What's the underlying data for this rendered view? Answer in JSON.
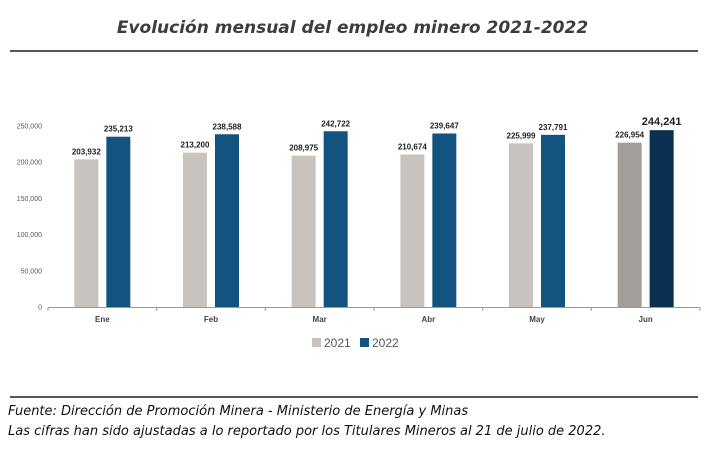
{
  "title": "Evolución mensual del empleo minero 2021-2022",
  "footer": {
    "source": "Fuente: Dirección de Promoción Minera - Ministerio de Energía y Minas",
    "note": "Las cifras han sido ajustadas a lo reportado por los Titulares Mineros al 21 de julio de 2022."
  },
  "chart_data": {
    "type": "bar",
    "title": "Evolución mensual del empleo minero 2021-2022",
    "categories": [
      "Ene",
      "Feb",
      "Mar",
      "Abr",
      "May",
      "Jun"
    ],
    "series": [
      {
        "name": "2021",
        "values": [
          203932,
          213200,
          208975,
          210674,
          225999,
          226954
        ],
        "labels": [
          "203,932",
          "213,200",
          "208,975",
          "210,674",
          "225,999",
          "226,954"
        ],
        "color": "#c8c3be",
        "last_color": "#a39e99"
      },
      {
        "name": "2022",
        "values": [
          235213,
          238588,
          242722,
          239647,
          237791,
          244241
        ],
        "labels": [
          "235,213",
          "238,588",
          "242,722",
          "239,647",
          "237,791",
          "244,241"
        ],
        "color": "#12547f",
        "last_color": "#0b3150"
      }
    ],
    "y_ticks": [
      "0",
      "50,000",
      "100,000",
      "150,000",
      "200,000",
      "250,000"
    ],
    "ylim": [
      0,
      250000
    ],
    "xlabel": "",
    "ylabel": "",
    "grid": false,
    "legend_position": "bottom"
  }
}
